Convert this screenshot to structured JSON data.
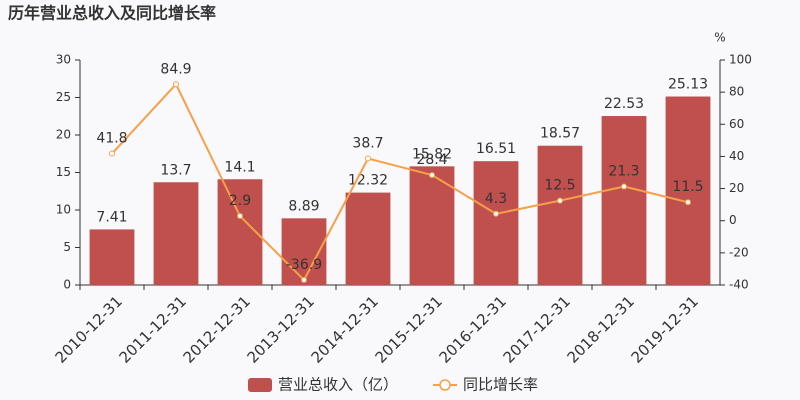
{
  "chart_data": {
    "type": "bar",
    "title": "历年营业总收入及同比增长率",
    "categories": [
      "2010-12-31",
      "2011-12-31",
      "2012-12-31",
      "2013-12-31",
      "2014-12-31",
      "2015-12-31",
      "2016-12-31",
      "2017-12-31",
      "2018-12-31",
      "2019-12-31"
    ],
    "series": [
      {
        "name": "营业总收入（亿）",
        "type": "bar",
        "color": "#c0504d",
        "values": [
          7.41,
          13.7,
          14.1,
          8.89,
          12.32,
          15.82,
          16.51,
          18.57,
          22.53,
          25.13
        ]
      },
      {
        "name": "同比增长率",
        "type": "line",
        "axis": "y2",
        "color": "#f5a04a",
        "values": [
          41.8,
          84.9,
          2.9,
          -36.9,
          38.7,
          28.4,
          4.3,
          12.5,
          21.3,
          11.5
        ]
      }
    ],
    "ylim": [
      0,
      30
    ],
    "yticks": [
      0,
      5,
      10,
      15,
      20,
      25,
      30
    ],
    "y2lim": [
      -40,
      100
    ],
    "y2ticks": [
      -40,
      -20,
      0,
      20,
      40,
      60,
      80,
      100
    ],
    "y2label": "%",
    "grid": false
  }
}
